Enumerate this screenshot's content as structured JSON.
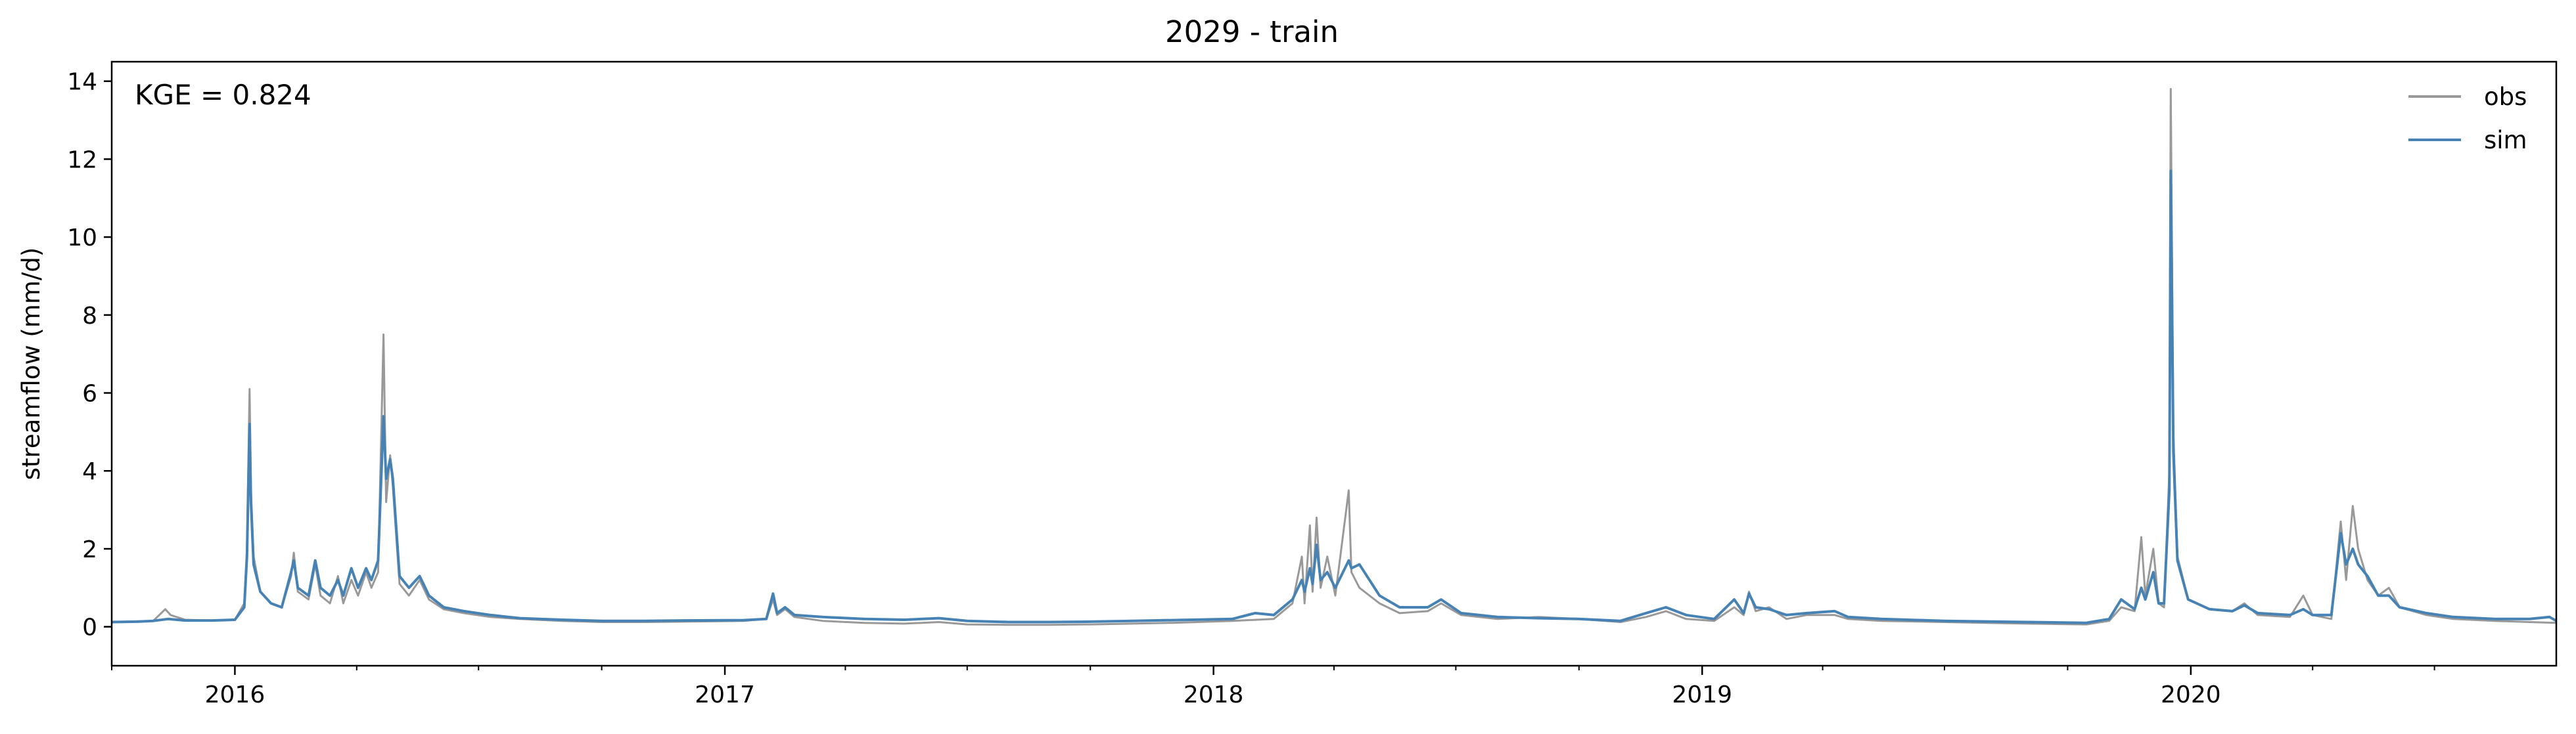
{
  "chart_data": {
    "type": "line",
    "title": "2029 - train",
    "xlabel": "",
    "ylabel": "streamflow (mm/d)",
    "annotation": "KGE = 0.824",
    "x_axis": {
      "type": "date",
      "range": [
        "2015-10-01",
        "2020-09-30"
      ],
      "major_ticks": [
        {
          "date": "2016-01-01",
          "label": "2016"
        },
        {
          "date": "2017-01-01",
          "label": "2017"
        },
        {
          "date": "2018-01-01",
          "label": "2018"
        },
        {
          "date": "2019-01-01",
          "label": "2019"
        },
        {
          "date": "2020-01-01",
          "label": "2020"
        }
      ],
      "minor_ticks": "quarterly"
    },
    "y_axis": {
      "range": [
        -1,
        14.5
      ],
      "ticks": [
        0,
        2,
        4,
        6,
        8,
        10,
        12,
        14
      ],
      "tick_labels": [
        "0",
        "2",
        "4",
        "6",
        "8",
        "10",
        "12",
        "14"
      ]
    },
    "grid": false,
    "legend": {
      "position": "top-right",
      "frame": false
    },
    "series": [
      {
        "name": "obs",
        "color": "#999999",
        "points": [
          [
            "2015-10-01",
            0.12
          ],
          [
            "2015-10-20",
            0.14
          ],
          [
            "2015-11-01",
            0.15
          ],
          [
            "2015-11-10",
            0.45
          ],
          [
            "2015-11-14",
            0.3
          ],
          [
            "2015-11-25",
            0.18
          ],
          [
            "2015-12-15",
            0.16
          ],
          [
            "2016-01-01",
            0.18
          ],
          [
            "2016-01-08",
            0.6
          ],
          [
            "2016-01-10",
            2.0
          ],
          [
            "2016-01-12",
            6.1
          ],
          [
            "2016-01-13",
            3.5
          ],
          [
            "2016-01-15",
            1.8
          ],
          [
            "2016-01-20",
            0.9
          ],
          [
            "2016-01-28",
            0.6
          ],
          [
            "2016-02-05",
            0.5
          ],
          [
            "2016-02-12",
            1.3
          ],
          [
            "2016-02-14",
            1.9
          ],
          [
            "2016-02-17",
            0.9
          ],
          [
            "2016-02-25",
            0.7
          ],
          [
            "2016-03-01",
            1.6
          ],
          [
            "2016-03-05",
            0.8
          ],
          [
            "2016-03-12",
            0.6
          ],
          [
            "2016-03-18",
            1.3
          ],
          [
            "2016-03-22",
            0.6
          ],
          [
            "2016-03-28",
            1.2
          ],
          [
            "2016-04-02",
            0.8
          ],
          [
            "2016-04-08",
            1.4
          ],
          [
            "2016-04-12",
            1.0
          ],
          [
            "2016-04-17",
            1.4
          ],
          [
            "2016-04-21",
            7.5
          ],
          [
            "2016-04-23",
            3.2
          ],
          [
            "2016-04-26",
            4.4
          ],
          [
            "2016-04-28",
            3.6
          ],
          [
            "2016-05-03",
            1.1
          ],
          [
            "2016-05-10",
            0.8
          ],
          [
            "2016-05-18",
            1.2
          ],
          [
            "2016-05-25",
            0.7
          ],
          [
            "2016-06-05",
            0.45
          ],
          [
            "2016-06-20",
            0.35
          ],
          [
            "2016-07-10",
            0.25
          ],
          [
            "2016-08-01",
            0.2
          ],
          [
            "2016-09-01",
            0.15
          ],
          [
            "2016-10-01",
            0.12
          ],
          [
            "2016-11-01",
            0.12
          ],
          [
            "2016-12-01",
            0.13
          ],
          [
            "2017-01-15",
            0.15
          ],
          [
            "2017-02-01",
            0.2
          ],
          [
            "2017-02-06",
            0.7
          ],
          [
            "2017-02-09",
            0.3
          ],
          [
            "2017-02-15",
            0.45
          ],
          [
            "2017-02-22",
            0.25
          ],
          [
            "2017-03-15",
            0.15
          ],
          [
            "2017-04-15",
            0.1
          ],
          [
            "2017-05-15",
            0.08
          ],
          [
            "2017-06-10",
            0.12
          ],
          [
            "2017-07-01",
            0.06
          ],
          [
            "2017-08-01",
            0.05
          ],
          [
            "2017-09-01",
            0.05
          ],
          [
            "2017-10-01",
            0.06
          ],
          [
            "2017-11-01",
            0.08
          ],
          [
            "2017-12-01",
            0.1
          ],
          [
            "2018-01-15",
            0.15
          ],
          [
            "2018-02-15",
            0.2
          ],
          [
            "2018-03-01",
            0.6
          ],
          [
            "2018-03-08",
            1.8
          ],
          [
            "2018-03-10",
            0.6
          ],
          [
            "2018-03-14",
            2.6
          ],
          [
            "2018-03-16",
            0.9
          ],
          [
            "2018-03-19",
            2.8
          ],
          [
            "2018-03-22",
            1.0
          ],
          [
            "2018-03-27",
            1.8
          ],
          [
            "2018-04-02",
            0.8
          ],
          [
            "2018-04-12",
            3.5
          ],
          [
            "2018-04-14",
            1.4
          ],
          [
            "2018-04-20",
            1.0
          ],
          [
            "2018-05-05",
            0.6
          ],
          [
            "2018-05-20",
            0.35
          ],
          [
            "2018-06-10",
            0.4
          ],
          [
            "2018-06-20",
            0.6
          ],
          [
            "2018-07-05",
            0.3
          ],
          [
            "2018-08-01",
            0.2
          ],
          [
            "2018-09-01",
            0.25
          ],
          [
            "2018-10-01",
            0.2
          ],
          [
            "2018-11-01",
            0.12
          ],
          [
            "2018-11-20",
            0.25
          ],
          [
            "2018-12-05",
            0.4
          ],
          [
            "2018-12-20",
            0.2
          ],
          [
            "2019-01-10",
            0.15
          ],
          [
            "2019-01-25",
            0.5
          ],
          [
            "2019-02-01",
            0.3
          ],
          [
            "2019-02-05",
            0.9
          ],
          [
            "2019-02-10",
            0.4
          ],
          [
            "2019-02-20",
            0.5
          ],
          [
            "2019-03-05",
            0.2
          ],
          [
            "2019-03-20",
            0.3
          ],
          [
            "2019-04-10",
            0.3
          ],
          [
            "2019-04-20",
            0.2
          ],
          [
            "2019-05-15",
            0.15
          ],
          [
            "2019-07-01",
            0.12
          ],
          [
            "2019-09-01",
            0.08
          ],
          [
            "2019-10-15",
            0.06
          ],
          [
            "2019-11-01",
            0.15
          ],
          [
            "2019-11-10",
            0.5
          ],
          [
            "2019-11-20",
            0.4
          ],
          [
            "2019-11-25",
            2.3
          ],
          [
            "2019-11-28",
            0.8
          ],
          [
            "2019-12-04",
            2.0
          ],
          [
            "2019-12-08",
            0.6
          ],
          [
            "2019-12-12",
            0.5
          ],
          [
            "2019-12-16",
            4.0
          ],
          [
            "2019-12-17",
            13.8
          ],
          [
            "2019-12-19",
            5.0
          ],
          [
            "2019-12-22",
            1.8
          ],
          [
            "2019-12-30",
            0.7
          ],
          [
            "2020-01-15",
            0.45
          ],
          [
            "2020-02-01",
            0.4
          ],
          [
            "2020-02-10",
            0.6
          ],
          [
            "2020-02-20",
            0.3
          ],
          [
            "2020-03-15",
            0.25
          ],
          [
            "2020-03-25",
            0.8
          ],
          [
            "2020-04-01",
            0.3
          ],
          [
            "2020-04-15",
            0.2
          ],
          [
            "2020-04-22",
            2.7
          ],
          [
            "2020-04-26",
            1.2
          ],
          [
            "2020-05-01",
            3.1
          ],
          [
            "2020-05-05",
            2.0
          ],
          [
            "2020-05-12",
            1.2
          ],
          [
            "2020-05-20",
            0.8
          ],
          [
            "2020-05-28",
            1.0
          ],
          [
            "2020-06-05",
            0.5
          ],
          [
            "2020-06-25",
            0.3
          ],
          [
            "2020-07-15",
            0.2
          ],
          [
            "2020-08-15",
            0.15
          ],
          [
            "2020-09-10",
            0.12
          ],
          [
            "2020-09-30",
            0.1
          ]
        ]
      },
      {
        "name": "sim",
        "color": "#4682b4",
        "points": [
          [
            "2015-10-01",
            0.12
          ],
          [
            "2015-10-20",
            0.13
          ],
          [
            "2015-11-01",
            0.15
          ],
          [
            "2015-11-12",
            0.2
          ],
          [
            "2015-11-25",
            0.16
          ],
          [
            "2015-12-15",
            0.16
          ],
          [
            "2016-01-01",
            0.18
          ],
          [
            "2016-01-08",
            0.5
          ],
          [
            "2016-01-10",
            1.8
          ],
          [
            "2016-01-12",
            5.2
          ],
          [
            "2016-01-13",
            3.2
          ],
          [
            "2016-01-15",
            1.6
          ],
          [
            "2016-01-20",
            0.9
          ],
          [
            "2016-01-28",
            0.6
          ],
          [
            "2016-02-05",
            0.5
          ],
          [
            "2016-02-12",
            1.4
          ],
          [
            "2016-02-14",
            1.7
          ],
          [
            "2016-02-17",
            1.0
          ],
          [
            "2016-02-25",
            0.8
          ],
          [
            "2016-03-01",
            1.7
          ],
          [
            "2016-03-05",
            1.0
          ],
          [
            "2016-03-12",
            0.8
          ],
          [
            "2016-03-18",
            1.2
          ],
          [
            "2016-03-22",
            0.8
          ],
          [
            "2016-03-28",
            1.5
          ],
          [
            "2016-04-02",
            1.0
          ],
          [
            "2016-04-08",
            1.5
          ],
          [
            "2016-04-12",
            1.2
          ],
          [
            "2016-04-17",
            1.7
          ],
          [
            "2016-04-21",
            5.4
          ],
          [
            "2016-04-23",
            3.8
          ],
          [
            "2016-04-26",
            4.3
          ],
          [
            "2016-04-28",
            3.8
          ],
          [
            "2016-05-03",
            1.3
          ],
          [
            "2016-05-10",
            1.0
          ],
          [
            "2016-05-18",
            1.3
          ],
          [
            "2016-05-25",
            0.8
          ],
          [
            "2016-06-05",
            0.5
          ],
          [
            "2016-06-20",
            0.4
          ],
          [
            "2016-07-10",
            0.3
          ],
          [
            "2016-08-01",
            0.22
          ],
          [
            "2016-09-01",
            0.18
          ],
          [
            "2016-10-01",
            0.15
          ],
          [
            "2016-11-01",
            0.15
          ],
          [
            "2016-12-01",
            0.16
          ],
          [
            "2017-01-15",
            0.17
          ],
          [
            "2017-02-01",
            0.2
          ],
          [
            "2017-02-06",
            0.85
          ],
          [
            "2017-02-09",
            0.35
          ],
          [
            "2017-02-15",
            0.5
          ],
          [
            "2017-02-22",
            0.3
          ],
          [
            "2017-03-15",
            0.25
          ],
          [
            "2017-04-15",
            0.2
          ],
          [
            "2017-05-15",
            0.18
          ],
          [
            "2017-06-10",
            0.22
          ],
          [
            "2017-07-01",
            0.15
          ],
          [
            "2017-08-01",
            0.12
          ],
          [
            "2017-09-01",
            0.12
          ],
          [
            "2017-10-01",
            0.13
          ],
          [
            "2017-11-01",
            0.15
          ],
          [
            "2017-12-01",
            0.17
          ],
          [
            "2018-01-15",
            0.2
          ],
          [
            "2018-02-01",
            0.35
          ],
          [
            "2018-02-15",
            0.3
          ],
          [
            "2018-03-01",
            0.7
          ],
          [
            "2018-03-08",
            1.2
          ],
          [
            "2018-03-10",
            0.9
          ],
          [
            "2018-03-14",
            1.5
          ],
          [
            "2018-03-16",
            1.1
          ],
          [
            "2018-03-19",
            2.1
          ],
          [
            "2018-03-22",
            1.2
          ],
          [
            "2018-03-27",
            1.4
          ],
          [
            "2018-04-02",
            1.0
          ],
          [
            "2018-04-12",
            1.7
          ],
          [
            "2018-04-14",
            1.5
          ],
          [
            "2018-04-20",
            1.6
          ],
          [
            "2018-05-05",
            0.8
          ],
          [
            "2018-05-20",
            0.5
          ],
          [
            "2018-06-10",
            0.5
          ],
          [
            "2018-06-20",
            0.7
          ],
          [
            "2018-07-05",
            0.35
          ],
          [
            "2018-08-01",
            0.25
          ],
          [
            "2018-09-01",
            0.22
          ],
          [
            "2018-10-01",
            0.2
          ],
          [
            "2018-11-01",
            0.15
          ],
          [
            "2018-11-20",
            0.35
          ],
          [
            "2018-12-05",
            0.5
          ],
          [
            "2018-12-20",
            0.3
          ],
          [
            "2019-01-10",
            0.2
          ],
          [
            "2019-01-25",
            0.7
          ],
          [
            "2019-02-01",
            0.35
          ],
          [
            "2019-02-05",
            0.85
          ],
          [
            "2019-02-10",
            0.5
          ],
          [
            "2019-02-20",
            0.45
          ],
          [
            "2019-03-05",
            0.3
          ],
          [
            "2019-03-20",
            0.35
          ],
          [
            "2019-04-10",
            0.4
          ],
          [
            "2019-04-20",
            0.25
          ],
          [
            "2019-05-15",
            0.2
          ],
          [
            "2019-07-01",
            0.15
          ],
          [
            "2019-09-01",
            0.12
          ],
          [
            "2019-10-15",
            0.1
          ],
          [
            "2019-11-01",
            0.2
          ],
          [
            "2019-11-10",
            0.7
          ],
          [
            "2019-11-20",
            0.45
          ],
          [
            "2019-11-25",
            1.0
          ],
          [
            "2019-11-28",
            0.7
          ],
          [
            "2019-12-04",
            1.4
          ],
          [
            "2019-12-08",
            0.6
          ],
          [
            "2019-12-12",
            0.6
          ],
          [
            "2019-12-16",
            3.5
          ],
          [
            "2019-12-17",
            11.7
          ],
          [
            "2019-12-19",
            4.5
          ],
          [
            "2019-12-22",
            1.7
          ],
          [
            "2019-12-30",
            0.7
          ],
          [
            "2020-01-15",
            0.45
          ],
          [
            "2020-02-01",
            0.4
          ],
          [
            "2020-02-10",
            0.55
          ],
          [
            "2020-02-20",
            0.35
          ],
          [
            "2020-03-15",
            0.3
          ],
          [
            "2020-03-25",
            0.45
          ],
          [
            "2020-04-01",
            0.3
          ],
          [
            "2020-04-15",
            0.3
          ],
          [
            "2020-04-22",
            2.4
          ],
          [
            "2020-04-26",
            1.6
          ],
          [
            "2020-05-01",
            2.0
          ],
          [
            "2020-05-05",
            1.6
          ],
          [
            "2020-05-12",
            1.3
          ],
          [
            "2020-05-20",
            0.8
          ],
          [
            "2020-05-28",
            0.8
          ],
          [
            "2020-06-05",
            0.5
          ],
          [
            "2020-06-25",
            0.35
          ],
          [
            "2020-07-15",
            0.25
          ],
          [
            "2020-08-15",
            0.2
          ],
          [
            "2020-09-10",
            0.2
          ],
          [
            "2020-09-25",
            0.25
          ],
          [
            "2020-09-30",
            0.15
          ]
        ]
      }
    ]
  }
}
